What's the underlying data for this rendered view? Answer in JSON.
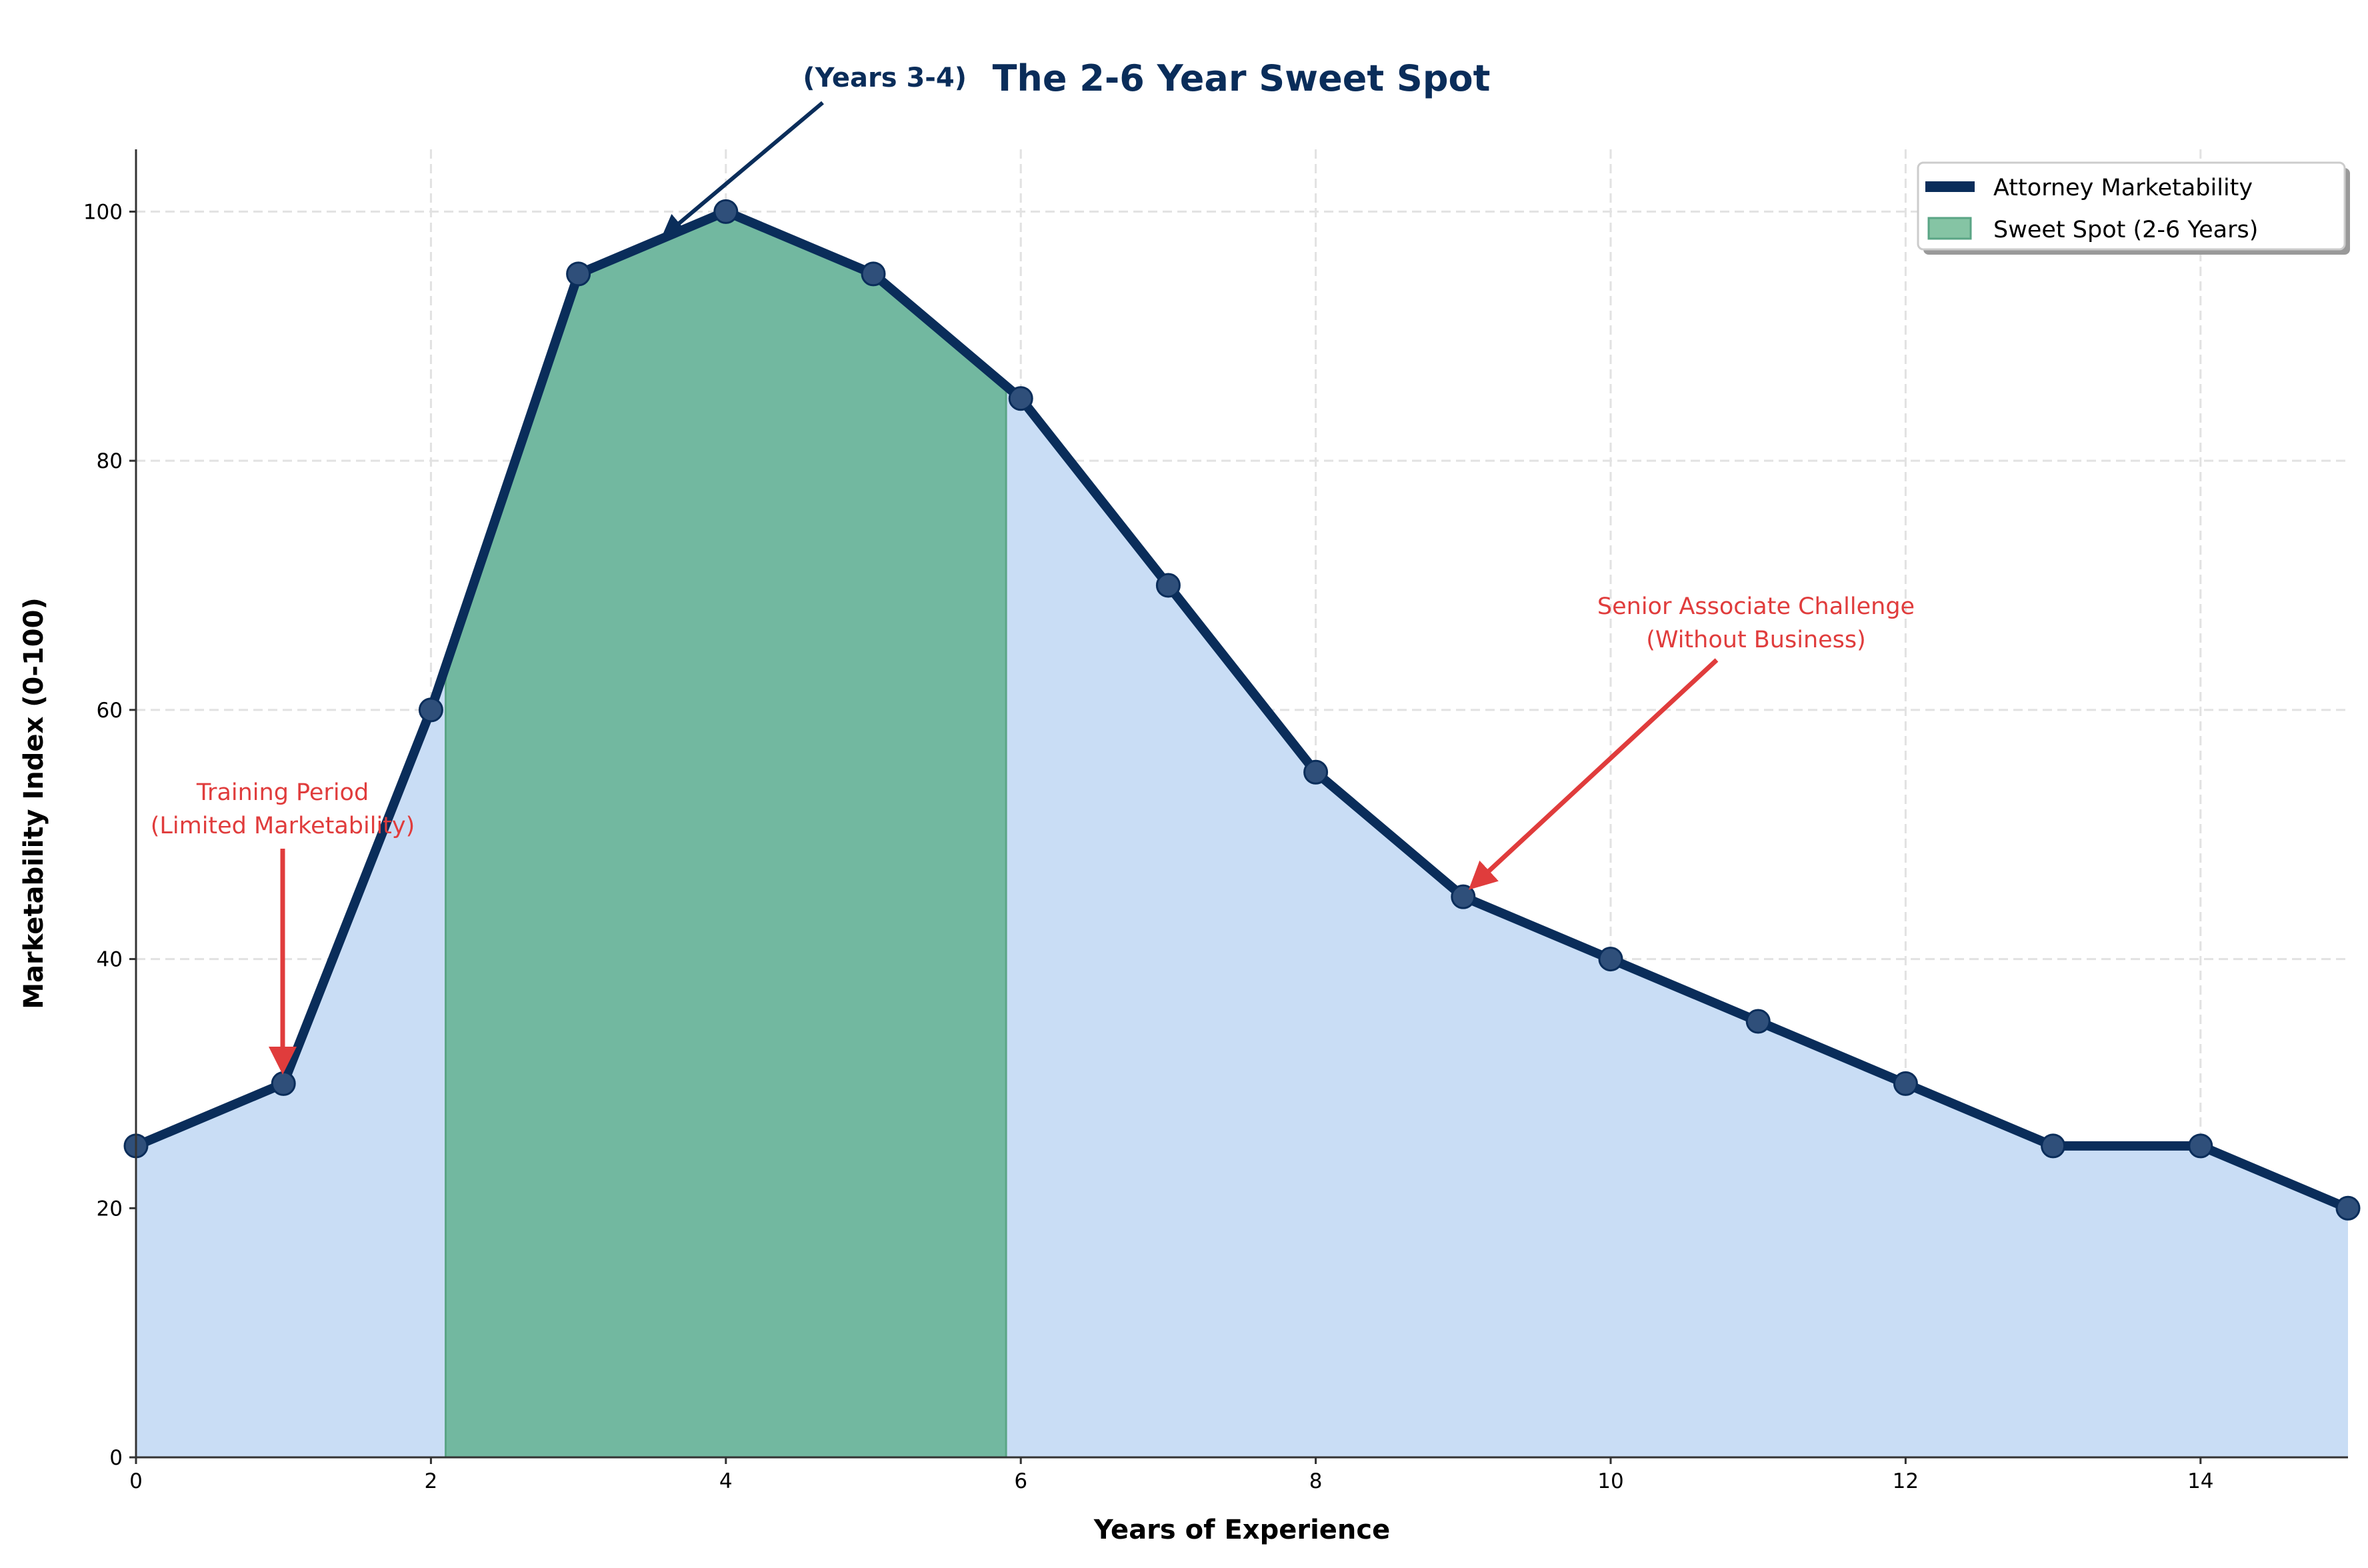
{
  "chart_data": {
    "type": "line",
    "title": "The 2-6 Year Sweet Spot",
    "xlabel": "Years of Experience",
    "ylabel": "Marketability Index (0-100)",
    "xlim": [
      0,
      15
    ],
    "ylim": [
      0,
      105
    ],
    "xticks": [
      "0",
      "2",
      "4",
      "6",
      "8",
      "10",
      "12",
      "14"
    ],
    "yticks": [
      "0",
      "20",
      "40",
      "60",
      "80",
      "100"
    ],
    "grid": true,
    "legend_position": "top-right",
    "series": [
      {
        "name": "Attorney Marketability",
        "x": [
          0,
          1,
          2,
          3,
          4,
          5,
          6,
          7,
          8,
          9,
          10,
          11,
          12,
          13,
          14,
          15
        ],
        "y": [
          25,
          30,
          60,
          95,
          100,
          95,
          85,
          70,
          55,
          45,
          40,
          35,
          30,
          25,
          25,
          20
        ],
        "color": "#0a2d5a"
      }
    ],
    "area_fill_color": "#c9ddf5",
    "highlight": {
      "name": "Sweet Spot (2-6 Years)",
      "x_range": [
        2.1,
        5.9
      ],
      "color": "#72b8a0"
    },
    "annotations": [
      {
        "text": [
          "Training Period",
          "(Limited Marketability)"
        ],
        "x": 1,
        "y": 30,
        "color": "#e03c3c"
      },
      {
        "text": [
          "(Years 3-4)"
        ],
        "x": 3.6,
        "y": 98,
        "color": "#0a2d5a"
      },
      {
        "text": [
          "Senior Associate Challenge",
          "(Without Business)"
        ],
        "x": 9,
        "y": 45,
        "color": "#e03c3c"
      }
    ]
  }
}
